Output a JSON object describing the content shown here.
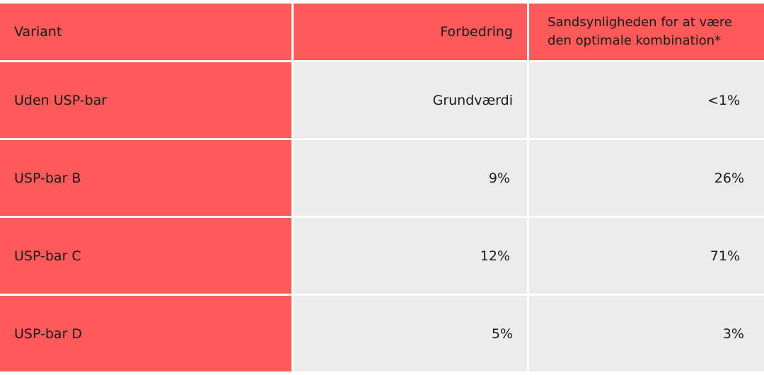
{
  "colors": {
    "accent_red": "#ff5a5a",
    "cell_gray": "#ebebeb",
    "text": "#1a1a1a"
  },
  "table": {
    "headers": {
      "variant": "Variant",
      "improvement": "Forbedring",
      "probability_line1": "Sandsynligheden for at være",
      "probability_line2": "den optimale kombination*"
    },
    "rows": [
      {
        "variant": "Uden USP-bar",
        "improvement": "Grundværdi",
        "probability": "<1%"
      },
      {
        "variant": "USP-bar B",
        "improvement": "9%",
        "probability": "26%"
      },
      {
        "variant": "USP-bar C",
        "improvement": "12%",
        "probability": "71%"
      },
      {
        "variant": "USP-bar D",
        "improvement": "5%",
        "probability": "3%"
      }
    ]
  }
}
